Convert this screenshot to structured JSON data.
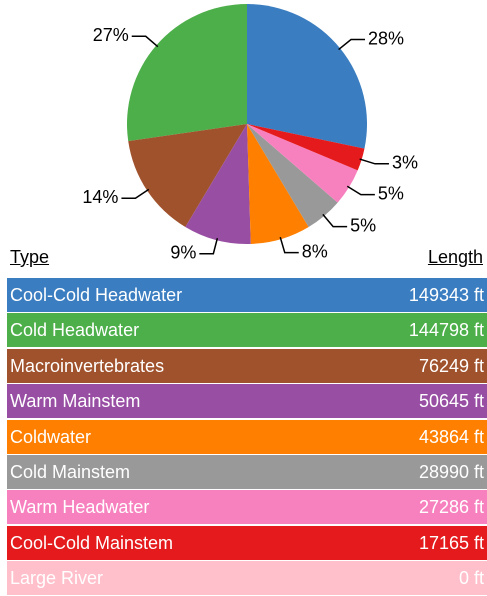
{
  "chart_data": {
    "type": "pie",
    "categories": [
      "Cool-Cold Headwater",
      "Cold Headwater",
      "Macroinvertebrates",
      "Warm Mainstem",
      "Coldwater",
      "Cold Mainstem",
      "Warm Headwater",
      "Cool-Cold Mainstem"
    ],
    "values": [
      28,
      27,
      14,
      9,
      8,
      5,
      5,
      3
    ],
    "value_labels": [
      "28%",
      "27%",
      "14%",
      "9%",
      "8%",
      "5%",
      "5%",
      "3%"
    ],
    "colors": [
      "#3a7dc0",
      "#4daf4a",
      "#a0522d",
      "#984ea3",
      "#ff7f00",
      "#999999",
      "#f781bf",
      "#e41a1c"
    ]
  },
  "table": {
    "header": [
      "Type",
      "Length"
    ],
    "rows": [
      {
        "cells": [
          "Cool-Cold Headwater",
          "149343 ft"
        ],
        "color": "#3a7dc0"
      },
      {
        "cells": [
          "Cold Headwater",
          "144798 ft"
        ],
        "color": "#4daf4a"
      },
      {
        "cells": [
          "Macroinvertebrates",
          "76249 ft"
        ],
        "color": "#a0522d"
      },
      {
        "cells": [
          "Warm Mainstem",
          "50645 ft"
        ],
        "color": "#984ea3"
      },
      {
        "cells": [
          "Coldwater",
          "43864 ft"
        ],
        "color": "#ff7f00"
      },
      {
        "cells": [
          "Cold Mainstem",
          "28990 ft"
        ],
        "color": "#999999"
      },
      {
        "cells": [
          "Warm Headwater",
          "27286 ft"
        ],
        "color": "#f781bf"
      },
      {
        "cells": [
          "Cool-Cold Mainstem",
          "17165 ft"
        ],
        "color": "#e41a1c"
      },
      {
        "cells": [
          "Large River",
          "0 ft"
        ],
        "color": "#ffc0cb"
      }
    ]
  }
}
